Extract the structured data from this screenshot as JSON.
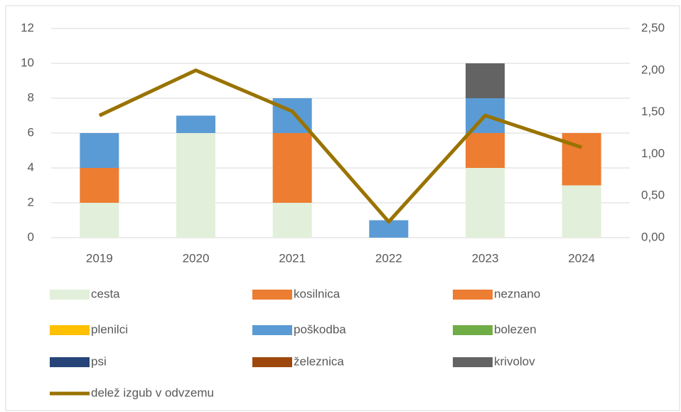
{
  "chart_data": {
    "type": "stacked_bar_line",
    "categories": [
      "2019",
      "2020",
      "2021",
      "2022",
      "2023",
      "2024"
    ],
    "series": [
      {
        "name": "cesta",
        "color": "#e2efda",
        "values": [
          2,
          6,
          2,
          0,
          4,
          3
        ]
      },
      {
        "name": "kosilnica",
        "color": "#ed7d31",
        "values": [
          2,
          0,
          4,
          0,
          2,
          3
        ]
      },
      {
        "name": "neznano",
        "color": "#ed7d31",
        "values": [
          0,
          0,
          0,
          0,
          0,
          0
        ]
      },
      {
        "name": "plenilci",
        "color": "#ffc000",
        "values": [
          0,
          0,
          0,
          0,
          0,
          0
        ]
      },
      {
        "name": "poškodba",
        "color": "#5b9bd5",
        "values": [
          2,
          1,
          2,
          1,
          2,
          0
        ]
      },
      {
        "name": "bolezen",
        "color": "#70ad47",
        "values": [
          0,
          0,
          0,
          0,
          0,
          0
        ]
      },
      {
        "name": "psi",
        "color": "#264478",
        "values": [
          0,
          0,
          0,
          0,
          0,
          0
        ]
      },
      {
        "name": "železnica",
        "color": "#9e480e",
        "values": [
          0,
          0,
          0,
          0,
          0,
          0
        ]
      },
      {
        "name": "krivolov",
        "color": "#636363",
        "values": [
          0,
          0,
          0,
          0,
          2,
          0
        ]
      },
      {
        "name": "delež izgub v odvzemu",
        "color": "#997300",
        "axis": "y2",
        "values": [
          1.46,
          2.0,
          1.51,
          0.19,
          1.46,
          1.08
        ]
      }
    ],
    "ylim": [
      0,
      12
    ],
    "yticks": [
      0,
      2,
      4,
      6,
      8,
      10,
      12
    ],
    "y2lim": [
      0,
      2.5
    ],
    "y2ticks": [
      {
        "value": 0,
        "label": "0,00"
      },
      {
        "value": 0.5,
        "label": "0,50"
      },
      {
        "value": 1,
        "label": "1,00"
      },
      {
        "value": 1.5,
        "label": "1,50"
      },
      {
        "value": 2,
        "label": "2,00"
      },
      {
        "value": 2.5,
        "label": "2,50"
      }
    ],
    "grid": true,
    "legend": "bottom"
  }
}
